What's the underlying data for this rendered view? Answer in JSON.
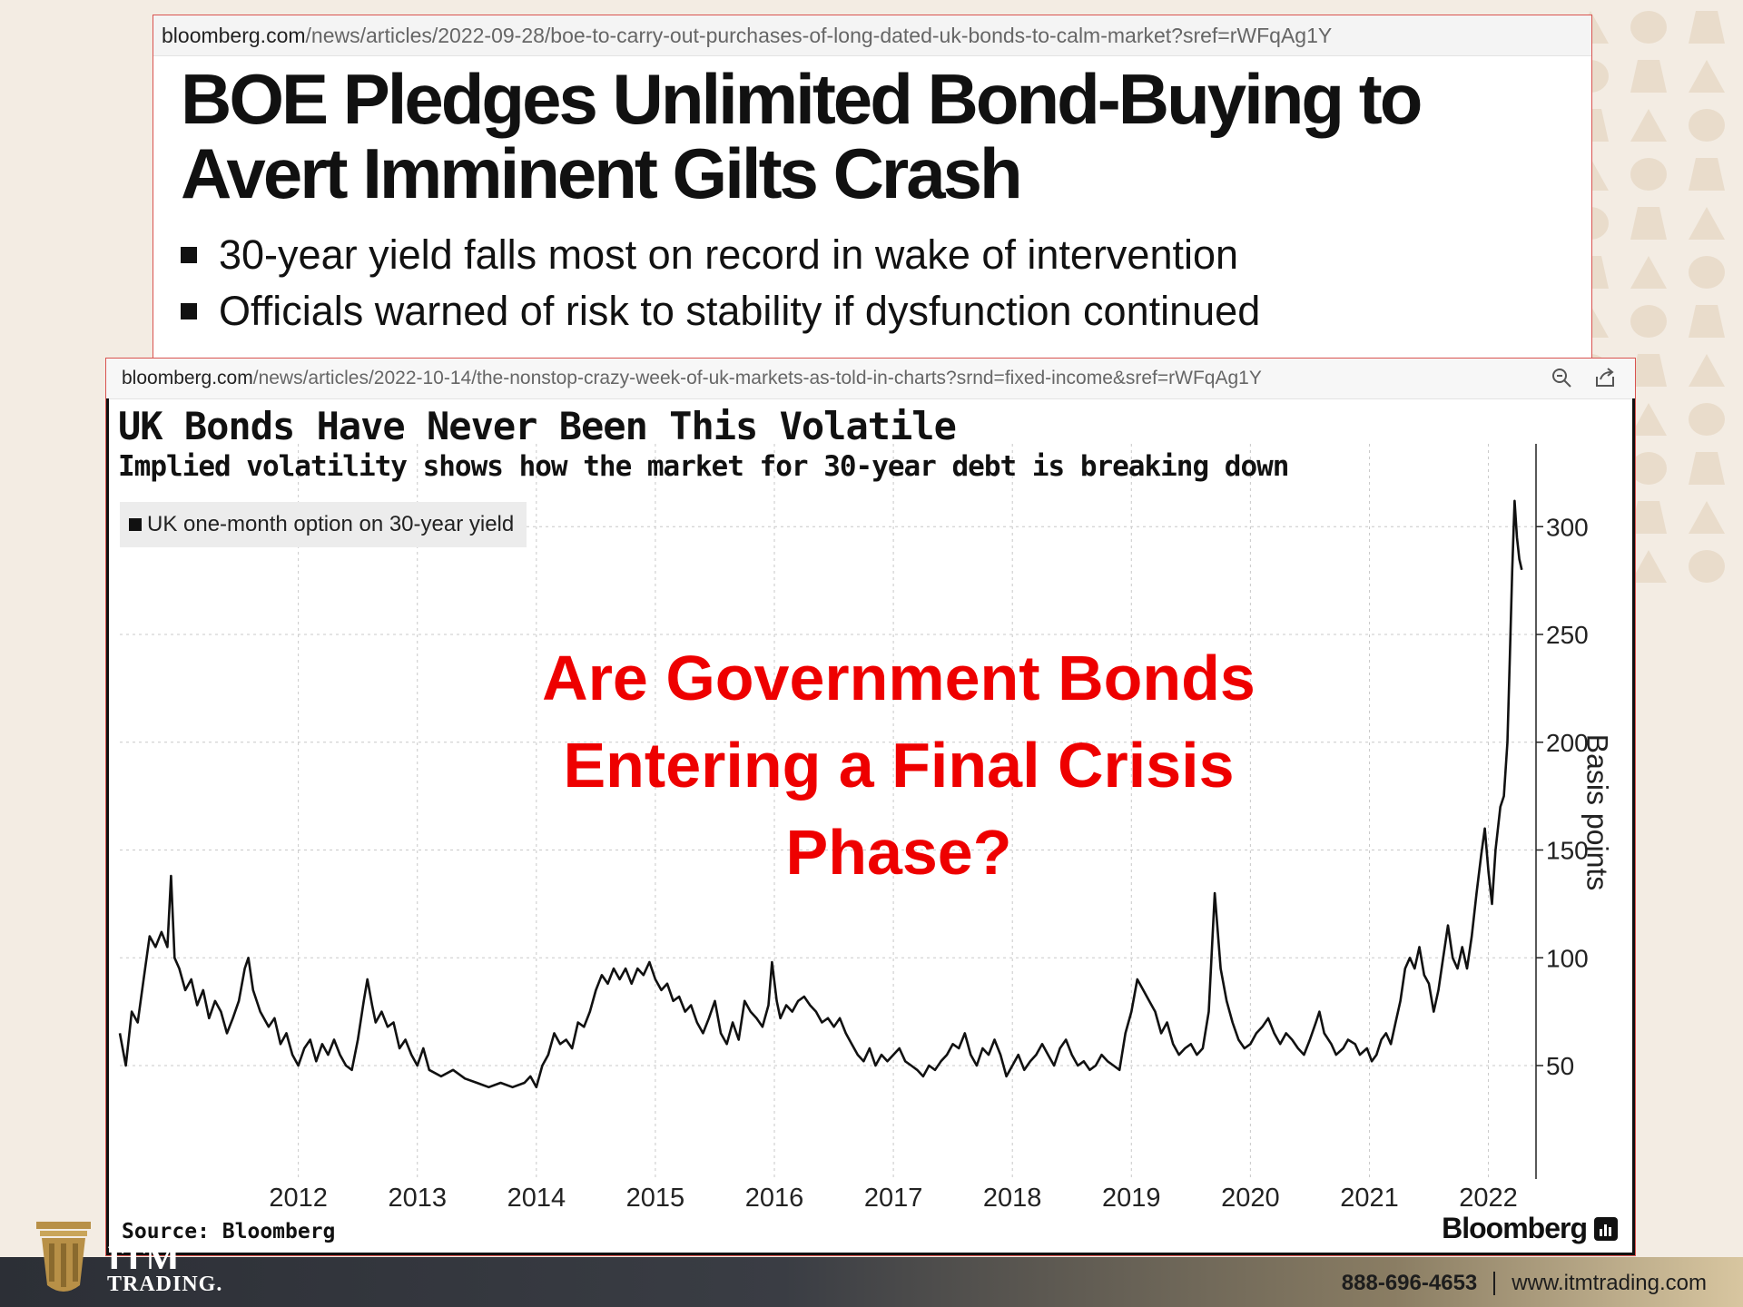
{
  "article1": {
    "url_domain": "bloomberg.com",
    "url_path": "/news/articles/2022-09-28/boe-to-carry-out-purchases-of-long-dated-uk-bonds-to-calm-market?sref=rWFqAg1Y",
    "headline_line1": "BOE Pledges Unlimited Bond-Buying to",
    "headline_line2": "Avert Imminent Gilts Crash",
    "bullets": [
      "30-year yield falls most on record in wake of intervention",
      "Officials warned of risk to stability if dysfunction continued"
    ]
  },
  "article2": {
    "url_domain": "bloomberg.com",
    "url_path": "/news/articles/2022-10-14/the-nonstop-crazy-week-of-uk-markets-as-told-in-charts?srnd=fixed-income&sref=rWFqAg1Y",
    "icons": [
      "zoom-icon",
      "share-icon"
    ]
  },
  "overlay_text": "Are Government Bonds\nEntering a Final Crisis\nPhase?",
  "chart_data": {
    "type": "line",
    "title": "UK Bonds Have Never Been This Volatile",
    "subtitle": "Implied volatility shows how the market for 30-year debt is breaking down",
    "legend": [
      "UK one-month option on 30-year yield"
    ],
    "legend_placement": "top-left",
    "ylabel": "Basis points",
    "xlabel": "",
    "ylim": [
      10,
      330
    ],
    "xlim": [
      2011.0,
      2022.9
    ],
    "y_ticks": [
      50,
      100,
      150,
      200,
      250,
      300
    ],
    "x_ticks": [
      "2012",
      "2013",
      "2014",
      "2015",
      "2016",
      "2017",
      "2018",
      "2019",
      "2020",
      "2021",
      "2022"
    ],
    "grid": true,
    "y_axis_side": "right",
    "series": [
      {
        "name": "UK one-month option on 30-year yield",
        "points": [
          [
            2011.0,
            65
          ],
          [
            2011.05,
            50
          ],
          [
            2011.1,
            75
          ],
          [
            2011.15,
            70
          ],
          [
            2011.2,
            90
          ],
          [
            2011.25,
            110
          ],
          [
            2011.3,
            105
          ],
          [
            2011.35,
            112
          ],
          [
            2011.4,
            105
          ],
          [
            2011.43,
            138
          ],
          [
            2011.46,
            100
          ],
          [
            2011.5,
            95
          ],
          [
            2011.55,
            85
          ],
          [
            2011.6,
            90
          ],
          [
            2011.65,
            78
          ],
          [
            2011.7,
            85
          ],
          [
            2011.75,
            72
          ],
          [
            2011.8,
            80
          ],
          [
            2011.85,
            75
          ],
          [
            2011.9,
            65
          ],
          [
            2011.95,
            72
          ],
          [
            2012.0,
            80
          ],
          [
            2012.05,
            95
          ],
          [
            2012.08,
            100
          ],
          [
            2012.12,
            85
          ],
          [
            2012.18,
            75
          ],
          [
            2012.25,
            68
          ],
          [
            2012.3,
            72
          ],
          [
            2012.35,
            60
          ],
          [
            2012.4,
            65
          ],
          [
            2012.45,
            55
          ],
          [
            2012.5,
            50
          ],
          [
            2012.55,
            58
          ],
          [
            2012.6,
            62
          ],
          [
            2012.65,
            52
          ],
          [
            2012.7,
            60
          ],
          [
            2012.75,
            55
          ],
          [
            2012.8,
            62
          ],
          [
            2012.85,
            55
          ],
          [
            2012.9,
            50
          ],
          [
            2012.95,
            48
          ],
          [
            2013.0,
            62
          ],
          [
            2013.05,
            80
          ],
          [
            2013.08,
            90
          ],
          [
            2013.12,
            78
          ],
          [
            2013.15,
            70
          ],
          [
            2013.2,
            75
          ],
          [
            2013.25,
            68
          ],
          [
            2013.3,
            70
          ],
          [
            2013.35,
            58
          ],
          [
            2013.4,
            62
          ],
          [
            2013.45,
            55
          ],
          [
            2013.5,
            50
          ],
          [
            2013.55,
            58
          ],
          [
            2013.6,
            48
          ],
          [
            2013.7,
            45
          ],
          [
            2013.8,
            48
          ],
          [
            2013.9,
            44
          ],
          [
            2014.0,
            42
          ],
          [
            2014.1,
            40
          ],
          [
            2014.2,
            42
          ],
          [
            2014.3,
            40
          ],
          [
            2014.4,
            42
          ],
          [
            2014.45,
            45
          ],
          [
            2014.5,
            40
          ],
          [
            2014.55,
            50
          ],
          [
            2014.6,
            55
          ],
          [
            2014.65,
            65
          ],
          [
            2014.7,
            60
          ],
          [
            2014.75,
            62
          ],
          [
            2014.8,
            58
          ],
          [
            2014.85,
            70
          ],
          [
            2014.9,
            68
          ],
          [
            2014.95,
            75
          ],
          [
            2015.0,
            85
          ],
          [
            2015.05,
            92
          ],
          [
            2015.1,
            88
          ],
          [
            2015.15,
            95
          ],
          [
            2015.2,
            90
          ],
          [
            2015.25,
            95
          ],
          [
            2015.3,
            88
          ],
          [
            2015.35,
            95
          ],
          [
            2015.4,
            92
          ],
          [
            2015.45,
            98
          ],
          [
            2015.5,
            90
          ],
          [
            2015.55,
            85
          ],
          [
            2015.6,
            88
          ],
          [
            2015.65,
            80
          ],
          [
            2015.7,
            82
          ],
          [
            2015.75,
            75
          ],
          [
            2015.8,
            78
          ],
          [
            2015.85,
            70
          ],
          [
            2015.9,
            65
          ],
          [
            2015.95,
            72
          ],
          [
            2016.0,
            80
          ],
          [
            2016.05,
            65
          ],
          [
            2016.1,
            60
          ],
          [
            2016.15,
            70
          ],
          [
            2016.2,
            62
          ],
          [
            2016.25,
            80
          ],
          [
            2016.3,
            75
          ],
          [
            2016.35,
            72
          ],
          [
            2016.4,
            68
          ],
          [
            2016.45,
            78
          ],
          [
            2016.48,
            98
          ],
          [
            2016.52,
            80
          ],
          [
            2016.55,
            72
          ],
          [
            2016.6,
            78
          ],
          [
            2016.65,
            75
          ],
          [
            2016.7,
            80
          ],
          [
            2016.75,
            82
          ],
          [
            2016.8,
            78
          ],
          [
            2016.85,
            75
          ],
          [
            2016.9,
            70
          ],
          [
            2016.95,
            72
          ],
          [
            2017.0,
            68
          ],
          [
            2017.05,
            72
          ],
          [
            2017.1,
            65
          ],
          [
            2017.15,
            60
          ],
          [
            2017.2,
            55
          ],
          [
            2017.25,
            52
          ],
          [
            2017.3,
            58
          ],
          [
            2017.35,
            50
          ],
          [
            2017.4,
            55
          ],
          [
            2017.45,
            52
          ],
          [
            2017.5,
            55
          ],
          [
            2017.55,
            58
          ],
          [
            2017.6,
            52
          ],
          [
            2017.65,
            50
          ],
          [
            2017.7,
            48
          ],
          [
            2017.75,
            45
          ],
          [
            2017.8,
            50
          ],
          [
            2017.85,
            48
          ],
          [
            2017.9,
            52
          ],
          [
            2017.95,
            55
          ],
          [
            2018.0,
            60
          ],
          [
            2018.05,
            58
          ],
          [
            2018.1,
            65
          ],
          [
            2018.15,
            55
          ],
          [
            2018.2,
            50
          ],
          [
            2018.25,
            58
          ],
          [
            2018.3,
            55
          ],
          [
            2018.35,
            62
          ],
          [
            2018.4,
            55
          ],
          [
            2018.45,
            45
          ],
          [
            2018.5,
            50
          ],
          [
            2018.55,
            55
          ],
          [
            2018.6,
            48
          ],
          [
            2018.65,
            52
          ],
          [
            2018.7,
            55
          ],
          [
            2018.75,
            60
          ],
          [
            2018.8,
            55
          ],
          [
            2018.85,
            50
          ],
          [
            2018.9,
            58
          ],
          [
            2018.95,
            62
          ],
          [
            2019.0,
            55
          ],
          [
            2019.05,
            50
          ],
          [
            2019.1,
            52
          ],
          [
            2019.15,
            48
          ],
          [
            2019.2,
            50
          ],
          [
            2019.25,
            55
          ],
          [
            2019.3,
            52
          ],
          [
            2019.35,
            50
          ],
          [
            2019.4,
            48
          ],
          [
            2019.45,
            65
          ],
          [
            2019.5,
            75
          ],
          [
            2019.55,
            90
          ],
          [
            2019.6,
            85
          ],
          [
            2019.65,
            80
          ],
          [
            2019.7,
            75
          ],
          [
            2019.75,
            65
          ],
          [
            2019.8,
            70
          ],
          [
            2019.85,
            60
          ],
          [
            2019.9,
            55
          ],
          [
            2019.95,
            58
          ],
          [
            2020.0,
            60
          ],
          [
            2020.05,
            55
          ],
          [
            2020.1,
            58
          ],
          [
            2020.15,
            75
          ],
          [
            2020.2,
            130
          ],
          [
            2020.25,
            95
          ],
          [
            2020.3,
            80
          ],
          [
            2020.35,
            70
          ],
          [
            2020.4,
            62
          ],
          [
            2020.45,
            58
          ],
          [
            2020.5,
            60
          ],
          [
            2020.55,
            65
          ],
          [
            2020.6,
            68
          ],
          [
            2020.65,
            72
          ],
          [
            2020.7,
            65
          ],
          [
            2020.75,
            60
          ],
          [
            2020.8,
            65
          ],
          [
            2020.85,
            62
          ],
          [
            2020.9,
            58
          ],
          [
            2020.95,
            55
          ],
          [
            2021.0,
            62
          ],
          [
            2021.05,
            70
          ],
          [
            2021.08,
            75
          ],
          [
            2021.12,
            65
          ],
          [
            2021.18,
            60
          ],
          [
            2021.22,
            55
          ],
          [
            2021.28,
            58
          ],
          [
            2021.32,
            62
          ],
          [
            2021.38,
            60
          ],
          [
            2021.42,
            55
          ],
          [
            2021.48,
            58
          ],
          [
            2021.52,
            52
          ],
          [
            2021.56,
            55
          ],
          [
            2021.6,
            62
          ],
          [
            2021.64,
            65
          ],
          [
            2021.68,
            60
          ],
          [
            2021.72,
            70
          ],
          [
            2021.76,
            80
          ],
          [
            2021.8,
            95
          ],
          [
            2021.84,
            100
          ],
          [
            2021.88,
            95
          ],
          [
            2021.92,
            105
          ],
          [
            2021.96,
            92
          ],
          [
            2022.0,
            88
          ],
          [
            2022.04,
            75
          ],
          [
            2022.08,
            85
          ],
          [
            2022.12,
            100
          ],
          [
            2022.16,
            115
          ],
          [
            2022.2,
            100
          ],
          [
            2022.24,
            95
          ],
          [
            2022.28,
            105
          ],
          [
            2022.32,
            95
          ],
          [
            2022.36,
            110
          ],
          [
            2022.4,
            130
          ],
          [
            2022.44,
            148
          ],
          [
            2022.47,
            160
          ],
          [
            2022.5,
            140
          ],
          [
            2022.53,
            125
          ],
          [
            2022.56,
            150
          ],
          [
            2022.6,
            170
          ],
          [
            2022.63,
            175
          ],
          [
            2022.66,
            200
          ],
          [
            2022.68,
            240
          ],
          [
            2022.7,
            280
          ],
          [
            2022.72,
            312
          ],
          [
            2022.74,
            295
          ],
          [
            2022.76,
            285
          ],
          [
            2022.78,
            280
          ]
        ]
      }
    ],
    "source": "Source: Bloomberg",
    "brand": "Bloomberg"
  },
  "footer": {
    "logo_line1": "ITM",
    "logo_line2": "TRADING.",
    "phone": "888-696-4653",
    "website": "www.itmtrading.com"
  },
  "colors": {
    "overlay": "#ee0000",
    "card_border": "#d9534f",
    "background": "#f3ece3",
    "logo_gold": "#b89047"
  }
}
